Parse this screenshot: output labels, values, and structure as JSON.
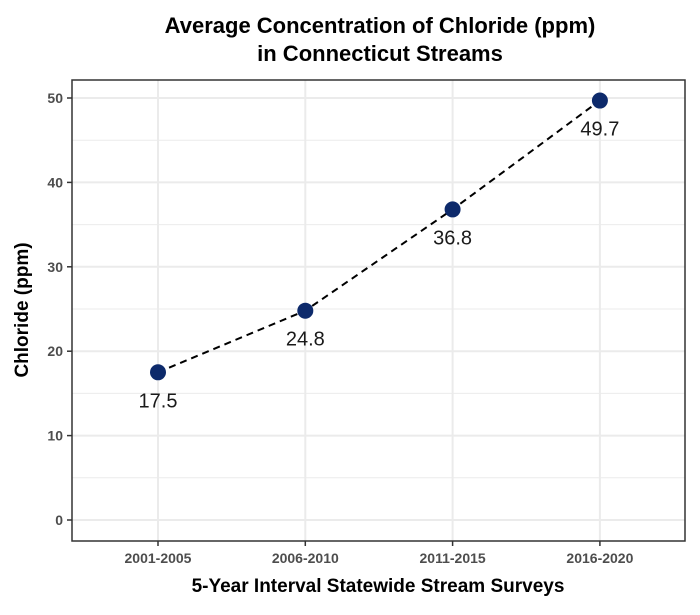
{
  "chart_data": {
    "type": "line",
    "title": [
      "Average Concentration of Chloride (ppm)",
      "in Connecticut Streams"
    ],
    "xlabel": "5-Year Interval Statewide Stream Surveys",
    "ylabel": "Chloride (ppm)",
    "categories": [
      "2001-2005",
      "2006-2010",
      "2011-2015",
      "2016-2020"
    ],
    "values": [
      17.5,
      24.8,
      36.8,
      49.7
    ],
    "data_labels": [
      "17.5",
      "24.8",
      "36.8",
      "49.7"
    ],
    "yticks": [
      0,
      10,
      20,
      30,
      40,
      50
    ],
    "ylim": [
      -2.1,
      52.1
    ],
    "grid": true,
    "line_style": "dashed",
    "colors": {
      "point": "#0d2a6b",
      "line": "#000000",
      "grid": "#ebebeb",
      "border": "#333333"
    }
  }
}
